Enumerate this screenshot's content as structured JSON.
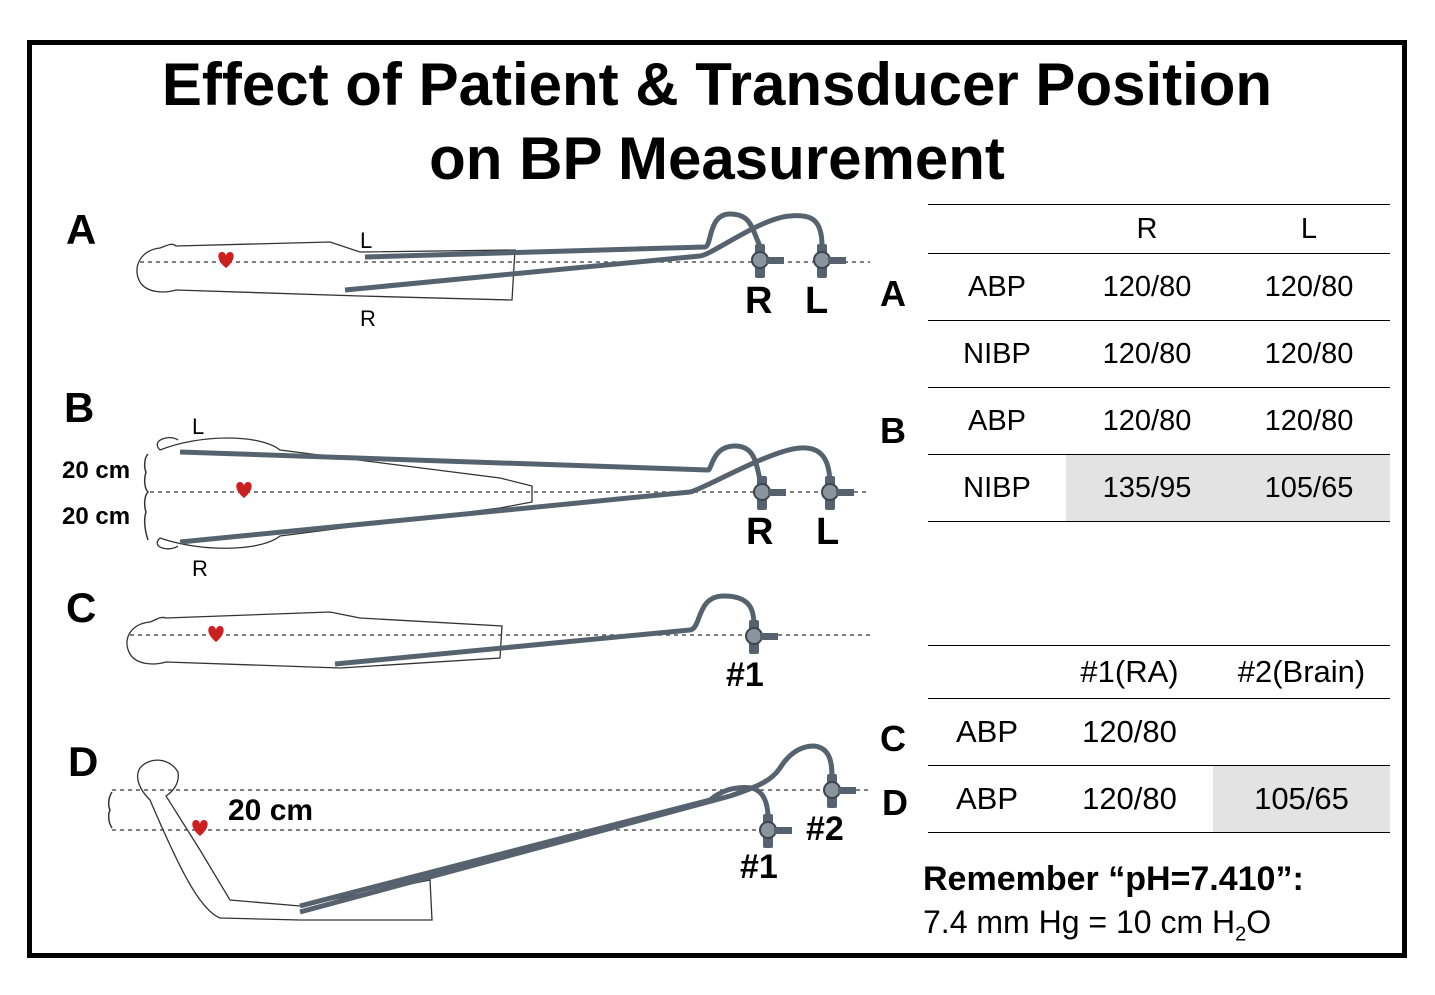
{
  "title": {
    "line1": "Effect of Patient & Transducer Position",
    "line2": "on BP Measurement"
  },
  "diagram": {
    "panel_letters": [
      "A",
      "B",
      "C",
      "D"
    ],
    "panel_a": {
      "arm_left": "L",
      "arm_right": "R",
      "transducer_right": "R",
      "transducer_left": "L"
    },
    "panel_b": {
      "arm_left": "L",
      "arm_right": "R",
      "offset_upper": "20 cm",
      "offset_lower": "20 cm",
      "transducer_right": "R",
      "transducer_left": "L"
    },
    "panel_c": {
      "transducer": "#1"
    },
    "panel_d": {
      "offset": "20 cm",
      "transducer_1": "#1",
      "transducer_2": "#2"
    },
    "heart_color": "#cc1f1f",
    "tube_color": "#56636f"
  },
  "table_ab": {
    "header": [
      "",
      "R",
      "L"
    ],
    "rows": [
      {
        "group": "A",
        "label": "ABP",
        "r": "120/80",
        "l": "120/80"
      },
      {
        "group": "",
        "label": "NIBP",
        "r": "120/80",
        "l": "120/80"
      },
      {
        "group": "B",
        "label": "ABP",
        "r": "120/80",
        "l": "120/80"
      },
      {
        "group": "",
        "label": "NIBP",
        "r": "135/95",
        "l": "105/65"
      }
    ]
  },
  "table_cd": {
    "header": [
      "",
      "#1(RA)",
      "#2(Brain)"
    ],
    "rows": [
      {
        "group": "C",
        "label": "ABP",
        "c1": "120/80",
        "c2": ""
      },
      {
        "group": "D",
        "label": "ABP",
        "c1": "120/80",
        "c2": "105/65"
      }
    ]
  },
  "remember": {
    "heading": "Remember “pH=7.410”:",
    "formula_left": "7.4 mm Hg = 10 cm H",
    "formula_sub": "2",
    "formula_right": "O"
  },
  "colors": {
    "shade": "#e3e3e3",
    "border": "#000000"
  }
}
